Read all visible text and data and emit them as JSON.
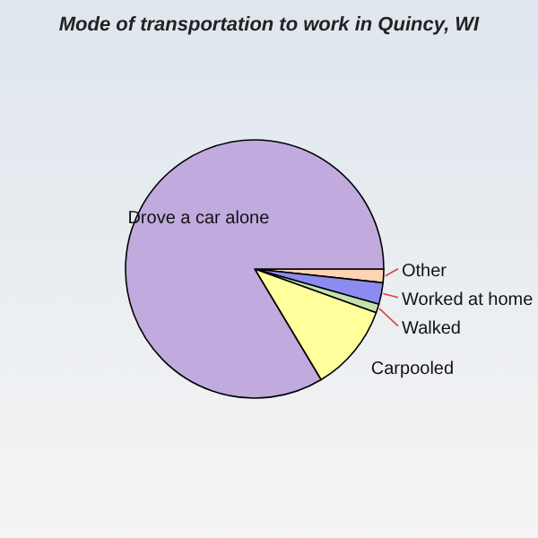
{
  "chart_data": {
    "type": "pie",
    "title": "Mode of transportation to work in Quincy, WI",
    "categories": [
      "Other",
      "Worked at home",
      "Walked",
      "Carpooled",
      "Drove a car alone"
    ],
    "values": [
      1.7,
      2.7,
      1.1,
      10.9,
      83.6
    ],
    "colors": [
      "#ffd4b4",
      "#8c8cf0",
      "#c4e0b0",
      "#ffff9c",
      "#c0aade"
    ]
  }
}
